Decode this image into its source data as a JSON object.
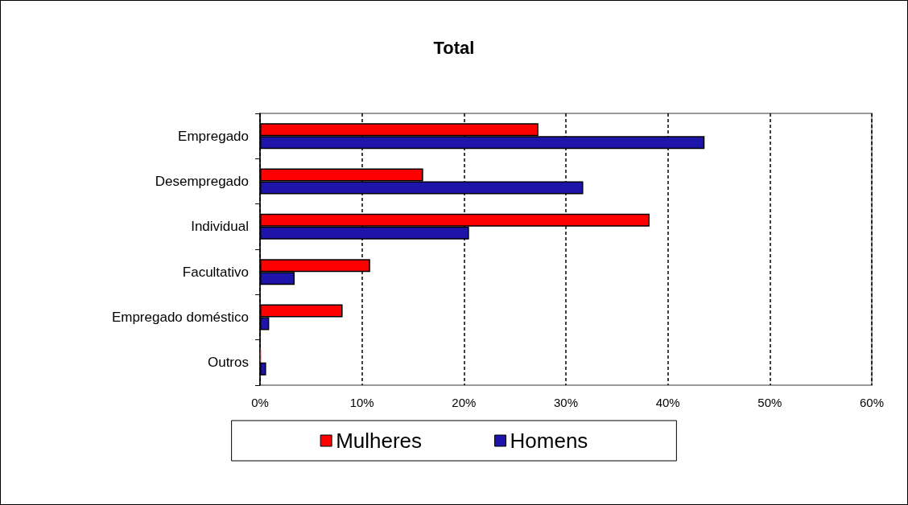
{
  "chart_data": {
    "type": "bar",
    "orientation": "horizontal",
    "title": "Total",
    "categories": [
      "Empregado",
      "Desempregado",
      "Individual",
      "Facultativo",
      "Empregado doméstico",
      "Outros"
    ],
    "series": [
      {
        "name": "Mulheres",
        "color": "#ff0000",
        "values": [
          27.3,
          16.0,
          38.2,
          10.8,
          8.1,
          0.1
        ]
      },
      {
        "name": "Homens",
        "color": "#1f14aa",
        "values": [
          43.6,
          31.7,
          20.5,
          3.4,
          0.9,
          0.6
        ]
      }
    ],
    "xlim": [
      0,
      60
    ],
    "xticks": [
      {
        "value": 0,
        "label": "0%"
      },
      {
        "value": 10,
        "label": "10%"
      },
      {
        "value": 20,
        "label": "20%"
      },
      {
        "value": 30,
        "label": "30%"
      },
      {
        "value": 40,
        "label": "40%"
      },
      {
        "value": 50,
        "label": "50%"
      },
      {
        "value": 60,
        "label": "60%"
      }
    ],
    "grid": "x",
    "legend": "bottom"
  }
}
